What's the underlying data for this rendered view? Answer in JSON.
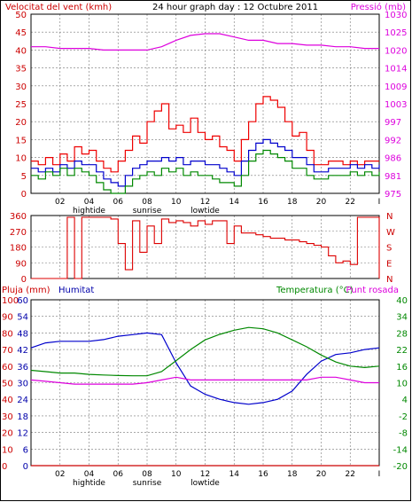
{
  "header": {
    "title": "24 hour graph day : 12 Octubre 2011",
    "wind_label": "Velocitat del vent (kmh)",
    "pressure_label": "Pressió (mb)"
  },
  "lower_header": {
    "rain_label": "Pluja (mm)",
    "humidity_label": "Humitat",
    "temp_label": "Temperatura (°C)",
    "dew_label": "Punt rosada"
  },
  "x_ticks": [
    "02",
    "04",
    "06",
    "08",
    "10",
    "12",
    "14",
    "16",
    "18",
    "20",
    "22",
    "I"
  ],
  "tide_labels": [
    {
      "text": "hightide",
      "hour": 4
    },
    {
      "text": "sunrise",
      "hour": 8
    },
    {
      "text": "lowtide",
      "hour": 12
    }
  ],
  "colors": {
    "wind_gust": "#ee0000",
    "wind_avg": "#0000cc",
    "wind_low": "#008800",
    "pressure": "#dd00dd",
    "direction": "#dd0000",
    "humidity": "#0000cc",
    "temperature": "#008800",
    "dew": "#dd00dd",
    "rain": "#cc0000",
    "grid": "#777777",
    "axis_red": "#cc0000",
    "axis_green": "#008800",
    "axis_blue": "#0000aa"
  },
  "chart_data": [
    {
      "type": "line",
      "name": "wind-pressure",
      "x_unit": "hour",
      "xlim": [
        0,
        24
      ],
      "y_left": {
        "ticks": [
          0,
          5,
          10,
          15,
          20,
          25,
          30,
          35,
          40,
          45,
          50
        ],
        "lim": [
          0,
          50
        ]
      },
      "y_right": {
        "ticks": [
          975,
          981,
          986,
          992,
          997,
          1003,
          1009,
          1014,
          1020,
          1025,
          1030
        ],
        "lim": [
          975,
          1030
        ]
      },
      "series": [
        {
          "key": "wind_gust",
          "x": [
            0,
            0.5,
            1,
            1.5,
            2,
            2.5,
            3,
            3.5,
            4,
            4.5,
            5,
            5.5,
            6,
            6.5,
            7,
            7.5,
            8,
            8.5,
            9,
            9.5,
            10,
            10.5,
            11,
            11.5,
            12,
            12.5,
            13,
            13.5,
            14,
            14.5,
            15,
            15.5,
            16,
            16.5,
            17,
            17.5,
            18,
            18.5,
            19,
            19.5,
            20,
            20.5,
            21,
            21.5,
            22,
            22.5,
            23,
            23.5,
            24
          ],
          "values": [
            9,
            8,
            10,
            8,
            11,
            9,
            13,
            11,
            12,
            9,
            7,
            6,
            9,
            12,
            16,
            14,
            20,
            23,
            25,
            18,
            19,
            17,
            21,
            17,
            15,
            16,
            13,
            12,
            9,
            15,
            20,
            25,
            27,
            26,
            24,
            20,
            16,
            17,
            12,
            8,
            8,
            9,
            9,
            8,
            9,
            8,
            9,
            9,
            9
          ]
        },
        {
          "key": "wind_avg",
          "x": [
            0,
            0.5,
            1,
            1.5,
            2,
            2.5,
            3,
            3.5,
            4,
            4.5,
            5,
            5.5,
            6,
            6.5,
            7,
            7.5,
            8,
            8.5,
            9,
            9.5,
            10,
            10.5,
            11,
            11.5,
            12,
            12.5,
            13,
            13.5,
            14,
            14.5,
            15,
            15.5,
            16,
            16.5,
            17,
            17.5,
            18,
            18.5,
            19,
            19.5,
            20,
            20.5,
            21,
            21.5,
            22,
            22.5,
            23,
            23.5,
            24
          ],
          "values": [
            7,
            6,
            7,
            6,
            8,
            7,
            9,
            8,
            8,
            6,
            4,
            3,
            2,
            5,
            7,
            8,
            9,
            9,
            10,
            9,
            10,
            8,
            9,
            9,
            8,
            8,
            7,
            6,
            5,
            9,
            12,
            14,
            15,
            14,
            13,
            12,
            10,
            10,
            8,
            6,
            6,
            7,
            7,
            7,
            8,
            7,
            8,
            7,
            8
          ]
        },
        {
          "key": "wind_low",
          "x": [
            0,
            0.5,
            1,
            1.5,
            2,
            2.5,
            3,
            3.5,
            4,
            4.5,
            5,
            5.5,
            6,
            6.5,
            7,
            7.5,
            8,
            8.5,
            9,
            9.5,
            10,
            10.5,
            11,
            11.5,
            12,
            12.5,
            13,
            13.5,
            14,
            14.5,
            15,
            15.5,
            16,
            16.5,
            17,
            17.5,
            18,
            18.5,
            19,
            19.5,
            20,
            20.5,
            21,
            21.5,
            22,
            22.5,
            23,
            23.5,
            24
          ],
          "values": [
            5,
            4,
            6,
            5,
            7,
            5,
            7,
            6,
            5,
            3,
            1,
            0,
            0,
            2,
            4,
            5,
            6,
            5,
            7,
            6,
            7,
            5,
            6,
            5,
            5,
            4,
            3,
            3,
            2,
            5,
            9,
            11,
            12,
            11,
            10,
            9,
            7,
            7,
            5,
            4,
            4,
            5,
            5,
            5,
            6,
            5,
            6,
            5,
            6
          ]
        },
        {
          "key": "pressure",
          "axis": "right",
          "x": [
            0,
            1,
            2,
            3,
            4,
            5,
            6,
            7,
            8,
            9,
            10,
            11,
            12,
            13,
            14,
            15,
            16,
            17,
            18,
            19,
            20,
            21,
            22,
            23,
            24
          ],
          "values": [
            1020,
            1020,
            1019.5,
            1019.5,
            1019.5,
            1019,
            1019,
            1019,
            1019,
            1020,
            1022,
            1023.5,
            1024,
            1024,
            1023,
            1022,
            1022,
            1021,
            1021,
            1020.5,
            1020.5,
            1020,
            1020,
            1019.5,
            1019.5
          ]
        }
      ]
    },
    {
      "type": "line",
      "name": "wind-direction",
      "x_unit": "hour",
      "xlim": [
        0,
        24
      ],
      "y_left": {
        "ticks": [
          0,
          90,
          180,
          270,
          360
        ],
        "lim": [
          0,
          360
        ]
      },
      "y_right_labels": [
        "N",
        "W",
        "S",
        "E",
        "N"
      ],
      "series": [
        {
          "key": "direction",
          "x": [
            0,
            1,
            2,
            2.5,
            3,
            3.5,
            4,
            4.5,
            5,
            5.5,
            6,
            6.5,
            7,
            7.5,
            8,
            8.5,
            9,
            9.5,
            10,
            10.5,
            11,
            11.5,
            12,
            12.5,
            13,
            13.5,
            14,
            14.5,
            15,
            15.5,
            16,
            16.5,
            17,
            17.5,
            18,
            18.5,
            19,
            19.5,
            20,
            20.5,
            21,
            21.5,
            22,
            22.5,
            23,
            23.5,
            24
          ],
          "values": [
            0,
            0,
            0,
            350,
            0,
            350,
            350,
            350,
            350,
            340,
            200,
            50,
            330,
            150,
            300,
            200,
            340,
            320,
            330,
            320,
            300,
            330,
            310,
            330,
            330,
            200,
            300,
            260,
            260,
            250,
            240,
            230,
            230,
            220,
            220,
            210,
            200,
            190,
            180,
            130,
            90,
            100,
            80,
            350,
            350,
            350,
            0
          ]
        }
      ]
    },
    {
      "type": "line",
      "name": "rain-humidity-temperature",
      "x_unit": "hour",
      "xlim": [
        0,
        24
      ],
      "y_left_outer": {
        "label": "rain",
        "ticks": [
          0,
          10,
          20,
          30,
          40,
          50,
          60,
          70,
          80,
          90,
          100
        ],
        "lim": [
          0,
          100
        ]
      },
      "y_left_inner": {
        "label": "humidity",
        "ticks": [
          0,
          6,
          12,
          18,
          24,
          30,
          36,
          42,
          48,
          54,
          60
        ],
        "lim": [
          0,
          60
        ]
      },
      "y_right": {
        "label": "temperature",
        "ticks": [
          -20,
          -14,
          -8,
          -2,
          4,
          10,
          16,
          22,
          28,
          34,
          40
        ],
        "lim": [
          -20,
          40
        ]
      },
      "series": [
        {
          "key": "humidity",
          "axis": "left",
          "x": [
            0,
            1,
            2,
            3,
            4,
            5,
            6,
            7,
            8,
            9,
            10,
            11,
            12,
            13,
            14,
            15,
            16,
            17,
            18,
            19,
            20,
            21,
            22,
            23,
            24
          ],
          "values": [
            71,
            74,
            75,
            75,
            75,
            76,
            78,
            79,
            80,
            79,
            62,
            48,
            43,
            40,
            38,
            37,
            38,
            40,
            45,
            55,
            63,
            67,
            68,
            70,
            71
          ]
        },
        {
          "key": "temperature",
          "axis": "right",
          "x": [
            0,
            1,
            2,
            3,
            4,
            5,
            6,
            7,
            8,
            9,
            10,
            11,
            12,
            13,
            14,
            15,
            16,
            17,
            18,
            19,
            20,
            21,
            22,
            23,
            24
          ],
          "values": [
            14.5,
            14,
            13.5,
            13.5,
            13,
            12.8,
            12.6,
            12.5,
            12.5,
            14,
            18,
            22,
            25.5,
            27.5,
            29,
            30,
            29.5,
            28,
            25.5,
            23,
            20,
            17.5,
            16,
            15.5,
            16
          ]
        },
        {
          "key": "dew",
          "axis": "right",
          "x": [
            0,
            1,
            2,
            3,
            4,
            5,
            6,
            7,
            8,
            9,
            10,
            11,
            12,
            13,
            14,
            15,
            16,
            17,
            18,
            19,
            20,
            21,
            22,
            23,
            24
          ],
          "values": [
            11,
            10.5,
            10,
            9.5,
            9.5,
            9.5,
            9.5,
            9.5,
            10,
            11,
            12,
            11,
            11,
            11,
            11,
            11,
            11,
            11,
            11,
            11,
            12,
            12,
            11,
            10,
            10
          ]
        },
        {
          "key": "rain",
          "axis": "left_outer",
          "x": [
            0,
            24
          ],
          "values": [
            0,
            0
          ]
        }
      ]
    }
  ]
}
